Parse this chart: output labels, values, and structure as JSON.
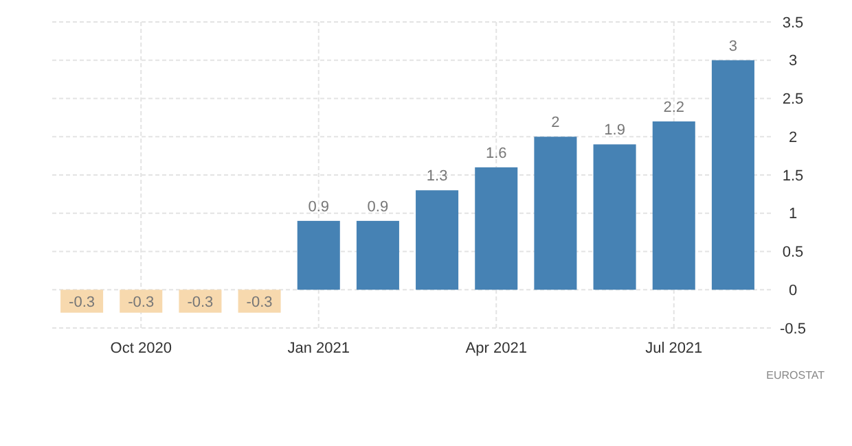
{
  "chart_data": {
    "type": "bar",
    "categories": [
      null,
      "Oct 2020",
      null,
      null,
      "Jan 2021",
      null,
      null,
      "Apr 2021",
      null,
      null,
      "Jul 2021",
      null
    ],
    "values": [
      -0.3,
      -0.3,
      -0.3,
      -0.3,
      0.9,
      0.9,
      1.3,
      1.6,
      2,
      1.9,
      2.2,
      3
    ],
    "colors": [
      "#f7d9ae",
      "#f7d9ae",
      "#f7d9ae",
      "#f7d9ae",
      "#4682b4",
      "#4682b4",
      "#4682b4",
      "#4682b4",
      "#4682b4",
      "#4682b4",
      "#4682b4",
      "#4682b4"
    ],
    "ylim": [
      -0.5,
      3.5
    ],
    "yticks": [
      -0.5,
      0,
      0.5,
      1,
      1.5,
      2,
      2.5,
      3,
      3.5
    ],
    "grid": true,
    "data_labels": true,
    "annotations": [
      "EUROSTAT"
    ]
  }
}
